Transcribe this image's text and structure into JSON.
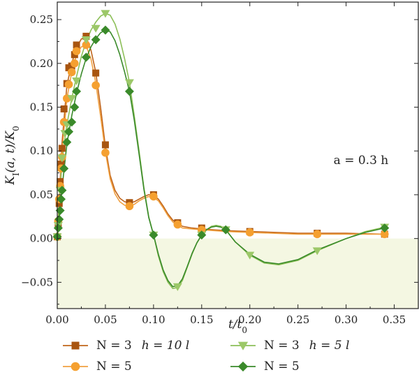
{
  "chart_data": {
    "type": "line",
    "xlabel": "t/t",
    "xlabel_sub": "0",
    "ylabel": "K",
    "ylabel_sub": "I",
    "ylabel_rest": "(a, t)/K",
    "ylabel_sub2": "0",
    "xlim": [
      0.0,
      0.375
    ],
    "ylim": [
      -0.08,
      0.27
    ],
    "xticks": [
      0.0,
      0.05,
      0.1,
      0.15,
      0.2,
      0.25,
      0.3,
      0.35
    ],
    "xtick_labels": [
      "0.00",
      "0.05",
      "0.10",
      "0.15",
      "0.20",
      "0.25",
      "0.30",
      "0.35"
    ],
    "yticks": [
      -0.05,
      0.0,
      0.05,
      0.1,
      0.15,
      0.2,
      0.25
    ],
    "ytick_labels": [
      "−0.05",
      "0.00",
      "0.05",
      "0.10",
      "0.15",
      "0.20",
      "0.25"
    ],
    "annotation": "a = 0.3 h",
    "shaded_region": "negative",
    "shade_color": "#f4f7e2",
    "legend_position": "bottom",
    "series": [
      {
        "name": "N = 3  h = 10 l",
        "color": "#a85510",
        "line_color": "#c0641a",
        "marker": "square",
        "points": [
          [
            0.0,
            0.002
          ],
          [
            0.001,
            0.015
          ],
          [
            0.002,
            0.04
          ],
          [
            0.003,
            0.065
          ],
          [
            0.004,
            0.085
          ],
          [
            0.005,
            0.103
          ],
          [
            0.007,
            0.148
          ],
          [
            0.01,
            0.177
          ],
          [
            0.012,
            0.195
          ],
          [
            0.015,
            0.197
          ],
          [
            0.018,
            0.21
          ],
          [
            0.02,
            0.221
          ],
          [
            0.03,
            0.231
          ],
          [
            0.04,
            0.189
          ],
          [
            0.05,
            0.107
          ],
          [
            0.075,
            0.041
          ],
          [
            0.1,
            0.05
          ],
          [
            0.125,
            0.018
          ],
          [
            0.15,
            0.012
          ],
          [
            0.2,
            0.008
          ],
          [
            0.27,
            0.006
          ],
          [
            0.34,
            0.005
          ]
        ],
        "curve": [
          [
            0.0,
            0.0
          ],
          [
            0.005,
            0.11
          ],
          [
            0.01,
            0.175
          ],
          [
            0.015,
            0.2
          ],
          [
            0.02,
            0.218
          ],
          [
            0.025,
            0.228
          ],
          [
            0.03,
            0.23
          ],
          [
            0.035,
            0.215
          ],
          [
            0.04,
            0.19
          ],
          [
            0.045,
            0.15
          ],
          [
            0.05,
            0.105
          ],
          [
            0.055,
            0.072
          ],
          [
            0.06,
            0.055
          ],
          [
            0.065,
            0.046
          ],
          [
            0.07,
            0.042
          ],
          [
            0.075,
            0.041
          ],
          [
            0.08,
            0.042
          ],
          [
            0.085,
            0.045
          ],
          [
            0.09,
            0.048
          ],
          [
            0.095,
            0.05
          ],
          [
            0.1,
            0.049
          ],
          [
            0.105,
            0.045
          ],
          [
            0.11,
            0.037
          ],
          [
            0.115,
            0.028
          ],
          [
            0.12,
            0.021
          ],
          [
            0.125,
            0.017
          ],
          [
            0.13,
            0.014
          ],
          [
            0.14,
            0.012
          ],
          [
            0.15,
            0.011
          ],
          [
            0.175,
            0.009
          ],
          [
            0.2,
            0.008
          ],
          [
            0.25,
            0.006
          ],
          [
            0.3,
            0.006
          ],
          [
            0.34,
            0.005
          ]
        ]
      },
      {
        "name": "N = 5",
        "color": "#f5a030",
        "line_color": "#f0a040",
        "marker": "circle",
        "points": [
          [
            0.0,
            0.002
          ],
          [
            0.001,
            0.02
          ],
          [
            0.002,
            0.045
          ],
          [
            0.003,
            0.06
          ],
          [
            0.004,
            0.08
          ],
          [
            0.005,
            0.093
          ],
          [
            0.007,
            0.133
          ],
          [
            0.01,
            0.16
          ],
          [
            0.012,
            0.176
          ],
          [
            0.015,
            0.19
          ],
          [
            0.018,
            0.2
          ],
          [
            0.02,
            0.214
          ],
          [
            0.03,
            0.221
          ],
          [
            0.04,
            0.175
          ],
          [
            0.05,
            0.098
          ],
          [
            0.075,
            0.037
          ],
          [
            0.1,
            0.048
          ],
          [
            0.125,
            0.016
          ],
          [
            0.15,
            0.01
          ],
          [
            0.2,
            0.007
          ],
          [
            0.27,
            0.005
          ],
          [
            0.34,
            0.005
          ]
        ],
        "curve": [
          [
            0.0,
            0.0
          ],
          [
            0.005,
            0.1
          ],
          [
            0.01,
            0.16
          ],
          [
            0.015,
            0.19
          ],
          [
            0.02,
            0.21
          ],
          [
            0.025,
            0.219
          ],
          [
            0.03,
            0.22
          ],
          [
            0.035,
            0.205
          ],
          [
            0.04,
            0.178
          ],
          [
            0.045,
            0.14
          ],
          [
            0.05,
            0.099
          ],
          [
            0.055,
            0.068
          ],
          [
            0.06,
            0.051
          ],
          [
            0.065,
            0.042
          ],
          [
            0.07,
            0.038
          ],
          [
            0.075,
            0.037
          ],
          [
            0.08,
            0.039
          ],
          [
            0.085,
            0.043
          ],
          [
            0.09,
            0.046
          ],
          [
            0.095,
            0.048
          ],
          [
            0.1,
            0.047
          ],
          [
            0.105,
            0.043
          ],
          [
            0.11,
            0.035
          ],
          [
            0.115,
            0.026
          ],
          [
            0.12,
            0.019
          ],
          [
            0.125,
            0.015
          ],
          [
            0.13,
            0.012
          ],
          [
            0.14,
            0.011
          ],
          [
            0.15,
            0.01
          ],
          [
            0.175,
            0.008
          ],
          [
            0.2,
            0.007
          ],
          [
            0.25,
            0.005
          ],
          [
            0.3,
            0.005
          ],
          [
            0.34,
            0.005
          ]
        ]
      },
      {
        "name": "N = 3  h = 5 l",
        "color": "#9cc868",
        "line_color": "#8cbf58",
        "marker": "triangle-down",
        "points": [
          [
            0.0,
            0.002
          ],
          [
            0.001,
            0.015
          ],
          [
            0.003,
            0.055
          ],
          [
            0.005,
            0.092
          ],
          [
            0.008,
            0.12
          ],
          [
            0.01,
            0.13
          ],
          [
            0.015,
            0.16
          ],
          [
            0.02,
            0.18
          ],
          [
            0.03,
            0.227
          ],
          [
            0.04,
            0.24
          ],
          [
            0.05,
            0.257
          ],
          [
            0.075,
            0.178
          ],
          [
            0.1,
            0.004
          ],
          [
            0.125,
            -0.055
          ],
          [
            0.15,
            0.004
          ],
          [
            0.175,
            0.01
          ],
          [
            0.2,
            -0.019
          ],
          [
            0.27,
            -0.014
          ],
          [
            0.34,
            0.013
          ]
        ],
        "curve": [
          [
            0.0,
            0.0
          ],
          [
            0.005,
            0.09
          ],
          [
            0.01,
            0.13
          ],
          [
            0.015,
            0.16
          ],
          [
            0.02,
            0.185
          ],
          [
            0.025,
            0.208
          ],
          [
            0.03,
            0.225
          ],
          [
            0.035,
            0.238
          ],
          [
            0.04,
            0.247
          ],
          [
            0.045,
            0.254
          ],
          [
            0.05,
            0.257
          ],
          [
            0.055,
            0.255
          ],
          [
            0.06,
            0.245
          ],
          [
            0.065,
            0.228
          ],
          [
            0.07,
            0.205
          ],
          [
            0.075,
            0.178
          ],
          [
            0.08,
            0.14
          ],
          [
            0.085,
            0.1
          ],
          [
            0.09,
            0.058
          ],
          [
            0.095,
            0.025
          ],
          [
            0.1,
            0.004
          ],
          [
            0.105,
            -0.02
          ],
          [
            0.11,
            -0.038
          ],
          [
            0.115,
            -0.05
          ],
          [
            0.12,
            -0.057
          ],
          [
            0.125,
            -0.056
          ],
          [
            0.13,
            -0.048
          ],
          [
            0.135,
            -0.033
          ],
          [
            0.14,
            -0.018
          ],
          [
            0.145,
            -0.005
          ],
          [
            0.15,
            0.004
          ],
          [
            0.155,
            0.01
          ],
          [
            0.16,
            0.014
          ],
          [
            0.165,
            0.015
          ],
          [
            0.17,
            0.014
          ],
          [
            0.175,
            0.01
          ],
          [
            0.185,
            -0.004
          ],
          [
            0.2,
            -0.019
          ],
          [
            0.215,
            -0.028
          ],
          [
            0.23,
            -0.03
          ],
          [
            0.25,
            -0.025
          ],
          [
            0.27,
            -0.014
          ],
          [
            0.3,
            0.0
          ],
          [
            0.32,
            0.008
          ],
          [
            0.34,
            0.013
          ]
        ]
      },
      {
        "name": "N = 5",
        "color": "#3a8a2a",
        "line_color": "#3a8a2a",
        "marker": "diamond",
        "points": [
          [
            0.0,
            0.002
          ],
          [
            0.001,
            0.012
          ],
          [
            0.002,
            0.022
          ],
          [
            0.003,
            0.032
          ],
          [
            0.004,
            0.045
          ],
          [
            0.005,
            0.055
          ],
          [
            0.007,
            0.08
          ],
          [
            0.01,
            0.11
          ],
          [
            0.012,
            0.122
          ],
          [
            0.015,
            0.133
          ],
          [
            0.018,
            0.15
          ],
          [
            0.02,
            0.168
          ],
          [
            0.03,
            0.207
          ],
          [
            0.04,
            0.227
          ],
          [
            0.05,
            0.238
          ],
          [
            0.075,
            0.168
          ],
          [
            0.1,
            0.004
          ],
          [
            0.15,
            0.004
          ],
          [
            0.175,
            0.01
          ],
          [
            0.34,
            0.012
          ]
        ],
        "curve": [
          [
            0.0,
            0.0
          ],
          [
            0.005,
            0.058
          ],
          [
            0.01,
            0.108
          ],
          [
            0.015,
            0.14
          ],
          [
            0.02,
            0.166
          ],
          [
            0.025,
            0.188
          ],
          [
            0.03,
            0.206
          ],
          [
            0.035,
            0.219
          ],
          [
            0.04,
            0.228
          ],
          [
            0.045,
            0.235
          ],
          [
            0.05,
            0.238
          ],
          [
            0.055,
            0.236
          ],
          [
            0.06,
            0.226
          ],
          [
            0.065,
            0.21
          ],
          [
            0.07,
            0.19
          ],
          [
            0.075,
            0.168
          ],
          [
            0.08,
            0.135
          ],
          [
            0.085,
            0.096
          ],
          [
            0.09,
            0.056
          ],
          [
            0.095,
            0.024
          ],
          [
            0.1,
            0.004
          ],
          [
            0.105,
            -0.018
          ],
          [
            0.11,
            -0.036
          ],
          [
            0.115,
            -0.048
          ],
          [
            0.12,
            -0.055
          ],
          [
            0.125,
            -0.054
          ],
          [
            0.13,
            -0.046
          ],
          [
            0.135,
            -0.032
          ],
          [
            0.14,
            -0.017
          ],
          [
            0.145,
            -0.005
          ],
          [
            0.15,
            0.004
          ],
          [
            0.155,
            0.01
          ],
          [
            0.16,
            0.013
          ],
          [
            0.165,
            0.014
          ],
          [
            0.17,
            0.013
          ],
          [
            0.175,
            0.01
          ],
          [
            0.185,
            -0.004
          ],
          [
            0.2,
            -0.018
          ],
          [
            0.215,
            -0.027
          ],
          [
            0.23,
            -0.029
          ],
          [
            0.25,
            -0.024
          ],
          [
            0.27,
            -0.013
          ],
          [
            0.3,
            0.0
          ],
          [
            0.32,
            0.007
          ],
          [
            0.34,
            0.012
          ]
        ]
      }
    ],
    "legend": [
      {
        "series": 0,
        "n_text": "N = 3",
        "h_text": "h = 10 l"
      },
      {
        "series": 1,
        "n_text": "N = 5",
        "h_text": ""
      },
      {
        "series": 2,
        "n_text": "N = 3",
        "h_text": "h = 5 l"
      },
      {
        "series": 3,
        "n_text": "N = 5",
        "h_text": ""
      }
    ]
  }
}
